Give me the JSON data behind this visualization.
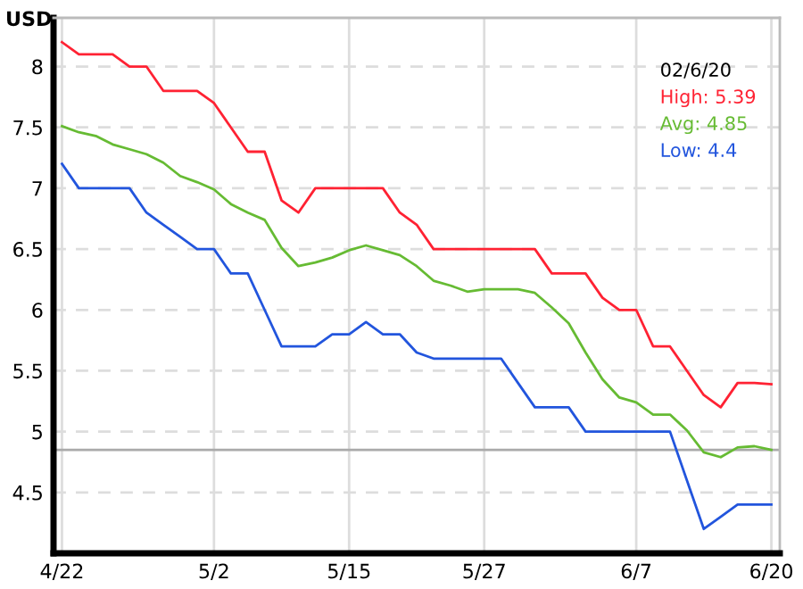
{
  "chart_data": {
    "type": "line",
    "ylabel": "USD",
    "categories": [
      "4/22",
      null,
      null,
      null,
      null,
      null,
      null,
      null,
      null,
      "5/2",
      null,
      null,
      null,
      null,
      null,
      null,
      null,
      "5/15",
      null,
      null,
      null,
      null,
      null,
      null,
      null,
      "5/27",
      null,
      null,
      null,
      null,
      null,
      null,
      null,
      null,
      "6/7",
      null,
      null,
      null,
      null,
      null,
      null,
      null,
      "6/20"
    ],
    "ylim": [
      4,
      8.4
    ],
    "yticks": [
      4.5,
      5,
      5.5,
      6,
      6.5,
      7,
      7.5,
      8
    ],
    "grid": true,
    "marker": "none",
    "line_style": "solid",
    "annotations": [
      "02/6/20",
      "High: 5.39",
      "Avg: 4.85",
      "Low: 4.4"
    ],
    "ref_lines": [
      {
        "axis": "y",
        "value": 4.85,
        "color": "#aaaaaa"
      }
    ],
    "series": [
      {
        "color": "#ff2233",
        "values": [
          8.2,
          8.1,
          8.1,
          8.1,
          8.0,
          8.0,
          7.8,
          7.8,
          7.8,
          7.7,
          7.5,
          7.3,
          7.3,
          6.9,
          6.8,
          7.0,
          7.0,
          7.0,
          7.0,
          7.0,
          6.8,
          6.7,
          6.5,
          6.5,
          6.5,
          6.5,
          6.5,
          6.5,
          6.5,
          6.3,
          6.3,
          6.3,
          6.1,
          6.0,
          6.0,
          5.7,
          5.7,
          5.5,
          5.3,
          5.2,
          5.4,
          5.4,
          5.39
        ]
      },
      {
        "color": "#66bb33",
        "values": [
          7.51,
          7.46,
          7.43,
          7.36,
          7.32,
          7.28,
          7.21,
          7.1,
          7.05,
          6.99,
          6.87,
          6.8,
          6.74,
          6.51,
          6.36,
          6.39,
          6.43,
          6.49,
          6.53,
          6.49,
          6.45,
          6.36,
          6.24,
          6.2,
          6.15,
          6.17,
          6.17,
          6.17,
          6.14,
          6.02,
          5.89,
          5.65,
          5.43,
          5.28,
          5.24,
          5.14,
          5.14,
          5.01,
          4.83,
          4.79,
          4.87,
          4.88,
          4.85
        ]
      },
      {
        "color": "#2255dd",
        "values": [
          7.2,
          7.0,
          7.0,
          7.0,
          7.0,
          6.8,
          6.7,
          6.6,
          6.5,
          6.5,
          6.3,
          6.3,
          6.0,
          5.7,
          5.7,
          5.7,
          5.8,
          5.8,
          5.9,
          5.8,
          5.8,
          5.65,
          5.6,
          5.6,
          5.6,
          5.6,
          5.6,
          5.4,
          5.2,
          5.2,
          5.2,
          5.0,
          5.0,
          5.0,
          5.0,
          5.0,
          5.0,
          4.6,
          4.2,
          4.3,
          4.4,
          4.4,
          4.4
        ]
      }
    ]
  }
}
